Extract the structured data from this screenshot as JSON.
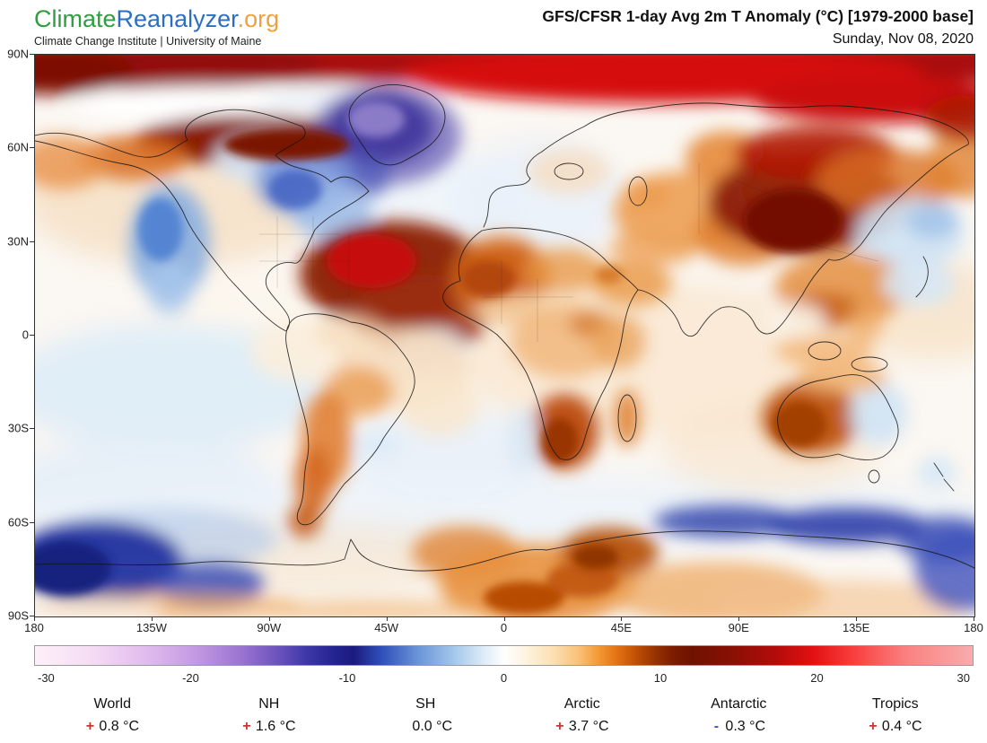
{
  "header": {
    "logo_climate": "Climate",
    "logo_reanalyzer": "Reanalyzer",
    "logo_org": ".org",
    "subtitle": "Climate Change Institute | University of Maine",
    "title": "GFS/CFSR 1-day Avg 2m T Anomaly (°C) [1979-2000 base]",
    "date": "Sunday, Nov 08, 2020"
  },
  "map": {
    "lat_labels": [
      "90N",
      "60N",
      "30N",
      "0",
      "30S",
      "60S",
      "90S"
    ],
    "lon_labels": [
      "180",
      "135W",
      "90W",
      "45W",
      "0",
      "45E",
      "90E",
      "135E",
      "180"
    ]
  },
  "colorbar": {
    "tick_labels": [
      "-30",
      "-20",
      "-10",
      "0",
      "10",
      "20",
      "30"
    ],
    "gradient_stops": [
      [
        0,
        "#fdf0f8"
      ],
      [
        6,
        "#f5dcf4"
      ],
      [
        12,
        "#e0bbee"
      ],
      [
        17,
        "#c49ae2"
      ],
      [
        22,
        "#9a74d2"
      ],
      [
        26,
        "#6a52bd"
      ],
      [
        29,
        "#3d37a8"
      ],
      [
        32,
        "#232391"
      ],
      [
        34,
        "#1b1b7e"
      ],
      [
        37,
        "#3050bc"
      ],
      [
        41,
        "#6c97d8"
      ],
      [
        45,
        "#a9cbec"
      ],
      [
        48,
        "#dfedf8"
      ],
      [
        50,
        "#ffffff"
      ],
      [
        52,
        "#fdf5e4"
      ],
      [
        55,
        "#fce2b8"
      ],
      [
        58,
        "#f9c176"
      ],
      [
        60,
        "#f49b38"
      ],
      [
        62,
        "#e47313"
      ],
      [
        64,
        "#c25106"
      ],
      [
        66,
        "#9a3402"
      ],
      [
        68,
        "#7c1d00"
      ],
      [
        70,
        "#6f1200"
      ],
      [
        74,
        "#871004"
      ],
      [
        79,
        "#b40b0b"
      ],
      [
        83,
        "#e31111"
      ],
      [
        87,
        "#f83b3b"
      ],
      [
        93,
        "#fb8181"
      ],
      [
        100,
        "#f8acac"
      ]
    ]
  },
  "stats": [
    {
      "label": "World",
      "sign": "+",
      "value": "0.8 °C"
    },
    {
      "label": "NH",
      "sign": "+",
      "value": "1.6 °C"
    },
    {
      "label": "SH",
      "sign": "",
      "value": "0.0 °C"
    },
    {
      "label": "Arctic",
      "sign": "+",
      "value": "3.7 °C"
    },
    {
      "label": "Antarctic",
      "sign": "-",
      "value": "0.3 °C"
    },
    {
      "label": "Tropics",
      "sign": "+",
      "value": "0.4 °C"
    }
  ],
  "colors": {
    "plus_sign": "#cc3333",
    "minus_sign": "#3b55bb",
    "logo_green": "#2f9e41",
    "logo_blue": "#2b6fbe",
    "logo_orange": "#f0a03c"
  },
  "chart_data": {
    "type": "heatmap",
    "title": "GFS/CFSR 1-day Avg 2m T Anomaly (°C) [1979-2000 base]",
    "date": "Sunday, Nov 08, 2020",
    "units": "°C",
    "baseline": "1979-2000",
    "colorbar_range": [
      -30,
      30
    ],
    "colorbar_ticks": [
      -30,
      -20,
      -10,
      0,
      10,
      20,
      30
    ],
    "extent": {
      "lon": [
        -180,
        180
      ],
      "lat": [
        -90,
        90
      ]
    },
    "lat_gridlines": [
      "90N",
      "60N",
      "30N",
      "0",
      "30S",
      "60S",
      "90S"
    ],
    "lon_gridlines": [
      "180",
      "135W",
      "90W",
      "45W",
      "0",
      "45E",
      "90E",
      "135E",
      "180"
    ],
    "regional_anomalies_C": {
      "World": 0.8,
      "NH": 1.6,
      "SH": 0.0,
      "Arctic": 3.7,
      "Antarctic": -0.3,
      "Tropics": 0.4
    }
  }
}
